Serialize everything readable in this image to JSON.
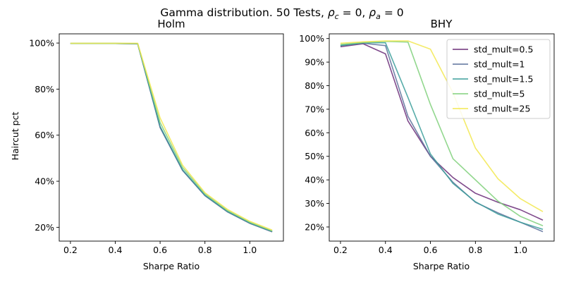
{
  "suptitle": {
    "prefix": "Gamma distribution. 50 Tests, ",
    "rho_c": "ρ",
    "rho_c_sub": "c",
    "rho_c_value": " = 0, ",
    "rho_a": "ρ",
    "rho_a_sub": "a",
    "rho_a_value": " = 0"
  },
  "colors": {
    "std_mult=0.5": "#6a2c78",
    "std_mult=1": "#5b6e9a",
    "std_mult=1.5": "#3a9e9a",
    "std_mult=5": "#7fd07a",
    "std_mult=25": "#f2e84f"
  },
  "chart_data": [
    {
      "type": "line",
      "title": "Holm",
      "xlabel": "Sharpe Ratio",
      "ylabel": "Haircut pct",
      "x": [
        0.2,
        0.3,
        0.4,
        0.5,
        0.6,
        0.7,
        0.8,
        0.9,
        1.0,
        1.1
      ],
      "xlim": [
        0.15,
        1.15
      ],
      "ylim": [
        0.14,
        1.04
      ],
      "xticks": [
        0.2,
        0.4,
        0.6,
        0.8,
        1.0
      ],
      "xtick_labels": [
        "0.2",
        "0.4",
        "0.6",
        "0.8",
        "1.0"
      ],
      "yticks": [
        0.2,
        0.4,
        0.6,
        0.8,
        1.0
      ],
      "ytick_labels": [
        "20%",
        "40%",
        "60%",
        "80%",
        "100%"
      ],
      "legend": null,
      "series": [
        {
          "name": "std_mult=0.5",
          "values": [
            0.998,
            0.998,
            0.998,
            0.997,
            0.635,
            0.448,
            0.338,
            0.268,
            0.218,
            0.181
          ]
        },
        {
          "name": "std_mult=1",
          "values": [
            0.998,
            0.998,
            0.998,
            0.997,
            0.633,
            0.447,
            0.337,
            0.267,
            0.217,
            0.18
          ]
        },
        {
          "name": "std_mult=1.5",
          "values": [
            0.998,
            0.998,
            0.998,
            0.997,
            0.638,
            0.45,
            0.339,
            0.269,
            0.219,
            0.182
          ]
        },
        {
          "name": "std_mult=5",
          "values": [
            0.999,
            0.999,
            0.999,
            0.998,
            0.655,
            0.46,
            0.345,
            0.273,
            0.222,
            0.184
          ]
        },
        {
          "name": "std_mult=25",
          "values": [
            0.999,
            0.999,
            0.999,
            0.999,
            0.675,
            0.47,
            0.35,
            0.278,
            0.226,
            0.188
          ]
        }
      ]
    },
    {
      "type": "line",
      "title": "BHY",
      "xlabel": "Sharpe Ratio",
      "ylabel": "",
      "x": [
        0.2,
        0.3,
        0.4,
        0.5,
        0.6,
        0.7,
        0.8,
        0.9,
        1.0,
        1.1
      ],
      "xlim": [
        0.15,
        1.15
      ],
      "ylim": [
        0.14,
        1.02
      ],
      "xticks": [
        0.2,
        0.4,
        0.6,
        0.8,
        1.0
      ],
      "xtick_labels": [
        "0.2",
        "0.4",
        "0.6",
        "0.8",
        "1.0"
      ],
      "yticks": [
        0.2,
        0.3,
        0.4,
        0.5,
        0.6,
        0.7,
        0.8,
        0.9,
        1.0
      ],
      "ytick_labels": [
        "20%",
        "30%",
        "40%",
        "50%",
        "60%",
        "70%",
        "80%",
        "90%",
        "100%"
      ],
      "legend": "top-right",
      "series": [
        {
          "name": "std_mult=0.5",
          "values": [
            0.965,
            0.978,
            0.935,
            0.65,
            0.5,
            0.41,
            0.343,
            0.305,
            0.273,
            0.229
          ]
        },
        {
          "name": "std_mult=1",
          "values": [
            0.97,
            0.98,
            0.97,
            0.67,
            0.5,
            0.39,
            0.305,
            0.26,
            0.22,
            0.18
          ]
        },
        {
          "name": "std_mult=1.5",
          "values": [
            0.97,
            0.982,
            0.982,
            0.75,
            0.51,
            0.385,
            0.307,
            0.255,
            0.22,
            0.19
          ]
        },
        {
          "name": "std_mult=5",
          "values": [
            0.975,
            0.983,
            0.988,
            0.985,
            0.72,
            0.49,
            0.4,
            0.31,
            0.245,
            0.205
          ]
        },
        {
          "name": "std_mult=25",
          "values": [
            0.98,
            0.986,
            0.99,
            0.99,
            0.955,
            0.77,
            0.535,
            0.405,
            0.32,
            0.265
          ]
        }
      ]
    }
  ]
}
